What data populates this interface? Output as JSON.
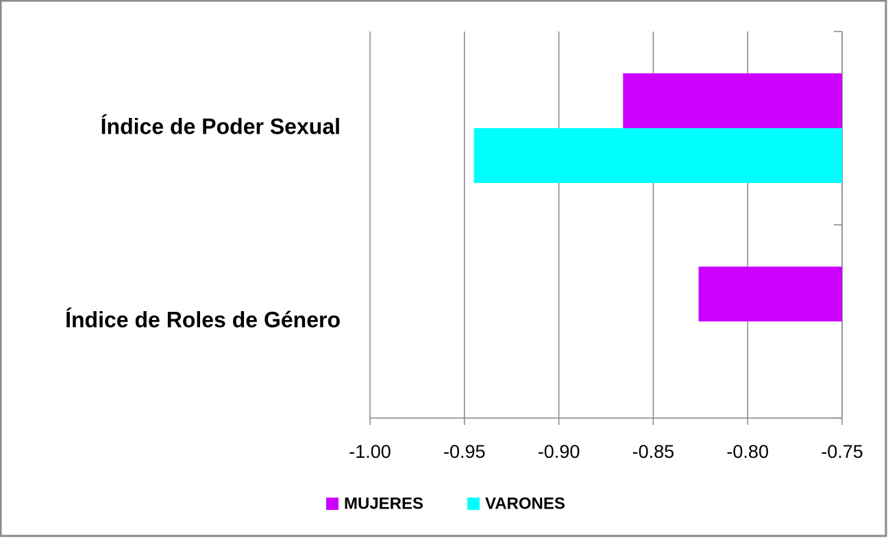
{
  "chart_data": {
    "type": "bar",
    "orientation": "horizontal",
    "categories": [
      "Índice de Poder Sexual",
      "Índice de Roles de Género"
    ],
    "series": [
      {
        "name": "MUJERES",
        "color": "#cc00ff",
        "values": [
          -0.866,
          -0.826
        ]
      },
      {
        "name": "VARONES",
        "color": "#00ffff",
        "values": [
          -0.945,
          null
        ]
      }
    ],
    "xlim": [
      -1.0,
      -0.75
    ],
    "xticks": [
      {
        "value": -1.0,
        "label": "-1.00"
      },
      -0.95,
      {
        "value": -0.9,
        "label": "-0.90"
      },
      -0.85,
      {
        "value": -0.8,
        "label": "-0.80"
      },
      -0.75
    ],
    "grid": true,
    "legend": "bottom"
  }
}
